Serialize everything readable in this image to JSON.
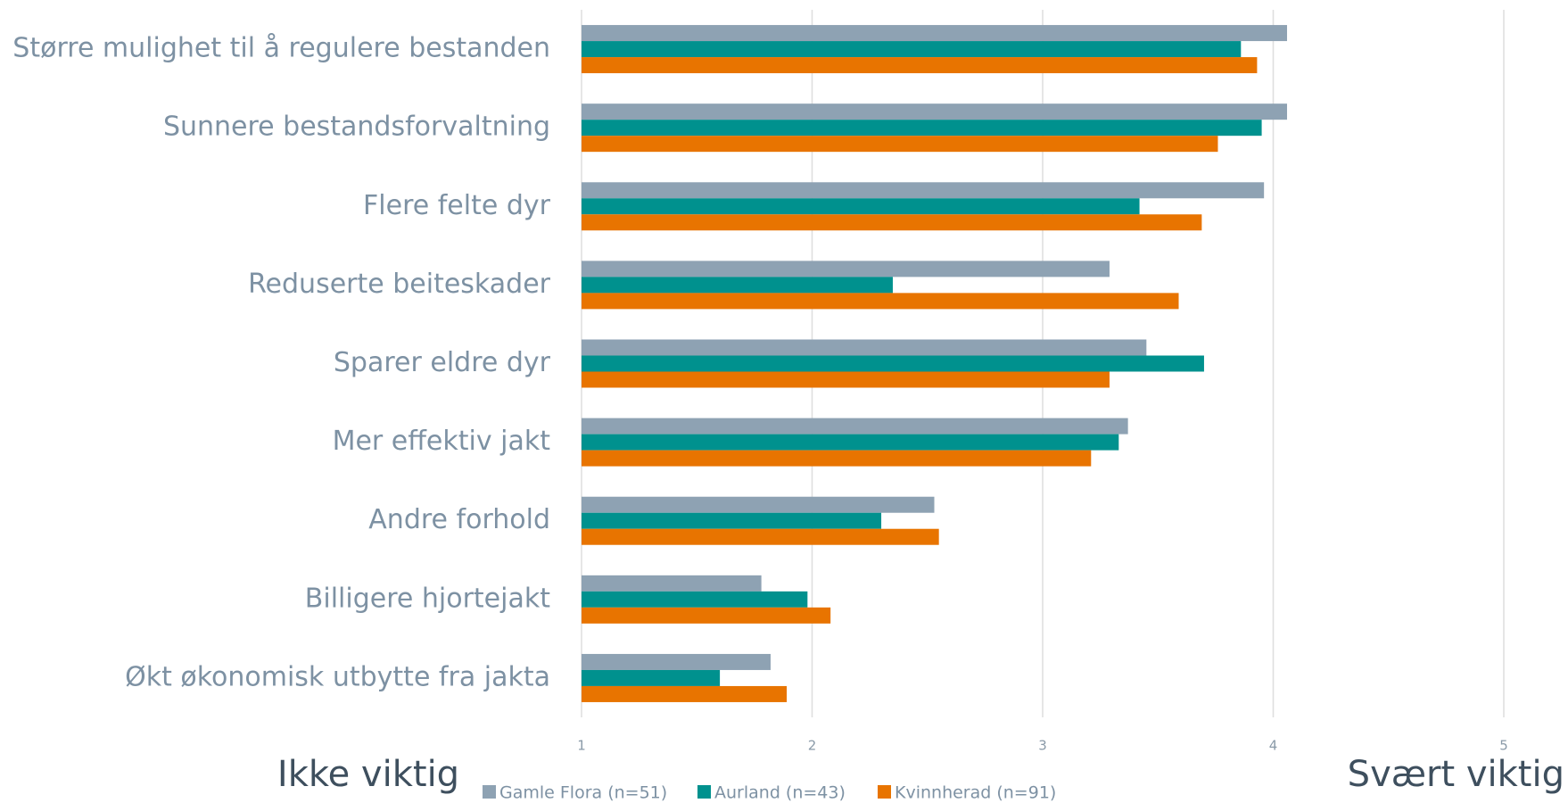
{
  "chart_data": {
    "type": "bar",
    "orientation": "horizontal",
    "categories": [
      "Større mulighet til å regulere bestanden",
      "Sunnere bestandsforvaltning",
      "Flere felte dyr",
      "Reduserte beiteskader",
      "Sparer eldre dyr",
      "Mer effektiv jakt",
      "Andre forhold",
      "Billigere hjortejakt",
      "Økt økonomisk utbytte fra jakta"
    ],
    "series": [
      {
        "name": "Gamle Flora (n=51)",
        "color": "#8ea2b3",
        "values": [
          4.06,
          4.06,
          3.96,
          3.29,
          3.45,
          3.37,
          2.53,
          1.78,
          1.82
        ]
      },
      {
        "name": "Aurland (n=43)",
        "color": "#00918e",
        "values": [
          3.86,
          3.95,
          3.42,
          2.35,
          3.7,
          3.33,
          2.3,
          1.98,
          1.6
        ]
      },
      {
        "name": "Kvinnherad (n=91)",
        "color": "#e87400",
        "values": [
          3.93,
          3.76,
          3.69,
          3.59,
          3.29,
          3.21,
          2.55,
          2.08,
          1.89
        ]
      }
    ],
    "xlim": [
      1,
      5
    ],
    "xticks": [
      1,
      2,
      3,
      4,
      5
    ],
    "grid": true,
    "legend": "bottom",
    "annotations": [
      "Ikke viktig",
      "Svært viktig"
    ]
  }
}
